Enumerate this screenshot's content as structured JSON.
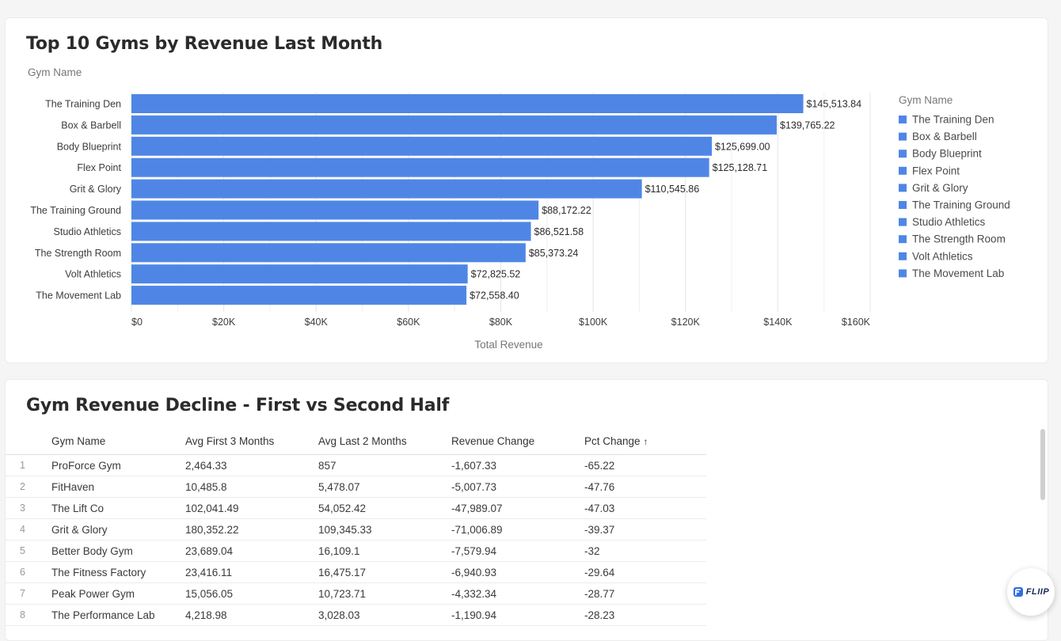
{
  "chart_card": {
    "title": "Top 10 Gyms by Revenue Last Month",
    "legend_title": "Gym Name"
  },
  "chart_data": {
    "type": "bar",
    "orientation": "horizontal",
    "title": "Top 10 Gyms by Revenue Last Month",
    "ylabel": "Gym Name",
    "xlabel": "Total Revenue",
    "xlim": [
      0,
      160000
    ],
    "x_ticks": [
      "$0",
      "$20K",
      "$40K",
      "$60K",
      "$80K",
      "$100K",
      "$120K",
      "$140K",
      "$160K"
    ],
    "categories": [
      "The Training Den",
      "Box & Barbell",
      "Body Blueprint",
      "Flex Point",
      "Grit & Glory",
      "The Training Ground",
      "Studio Athletics",
      "The Strength Room",
      "Volt Athletics",
      "The Movement Lab"
    ],
    "values": [
      145513.84,
      139765.22,
      125699.0,
      125128.71,
      110545.86,
      88172.22,
      86521.58,
      85373.24,
      72825.52,
      72558.4
    ],
    "value_labels": [
      "$145,513.84",
      "$139,765.22",
      "$125,699.00",
      "$125,128.71",
      "$110,545.86",
      "$88,172.22",
      "$86,521.58",
      "$85,373.24",
      "$72,825.52",
      "$72,558.40"
    ],
    "legend_title": "Gym Name",
    "legend_placement": "right",
    "bar_color": "#4f86e6",
    "grid": true
  },
  "table_card": {
    "title": "Gym Revenue Decline - First vs Second Half",
    "columns": [
      "Gym Name",
      "Avg First 3 Months",
      "Avg Last 2 Months",
      "Revenue Change",
      "Pct Change"
    ],
    "sort_icon": "arrow-up-icon",
    "sort_glyph": "↑",
    "rows": [
      [
        "1",
        "ProForce Gym",
        "2,464.33",
        "857",
        "-1,607.33",
        "-65.22"
      ],
      [
        "2",
        "FitHaven",
        "10,485.8",
        "5,478.07",
        "-5,007.73",
        "-47.76"
      ],
      [
        "3",
        "The Lift Co",
        "102,041.49",
        "54,052.42",
        "-47,989.07",
        "-47.03"
      ],
      [
        "4",
        "Grit & Glory",
        "180,352.22",
        "109,345.33",
        "-71,006.89",
        "-39.37"
      ],
      [
        "5",
        "Better Body Gym",
        "23,689.04",
        "16,109.1",
        "-7,579.94",
        "-32"
      ],
      [
        "6",
        "The Fitness Factory",
        "23,416.11",
        "16,475.17",
        "-6,940.93",
        "-29.64"
      ],
      [
        "7",
        "Peak Power Gym",
        "15,056.05",
        "10,723.71",
        "-4,332.34",
        "-28.77"
      ],
      [
        "8",
        "The Performance Lab",
        "4,218.98",
        "3,028.03",
        "-1,190.94",
        "-28.23"
      ]
    ]
  },
  "fab": {
    "label": "FLIIP",
    "icon": "fliip-logo-icon"
  }
}
